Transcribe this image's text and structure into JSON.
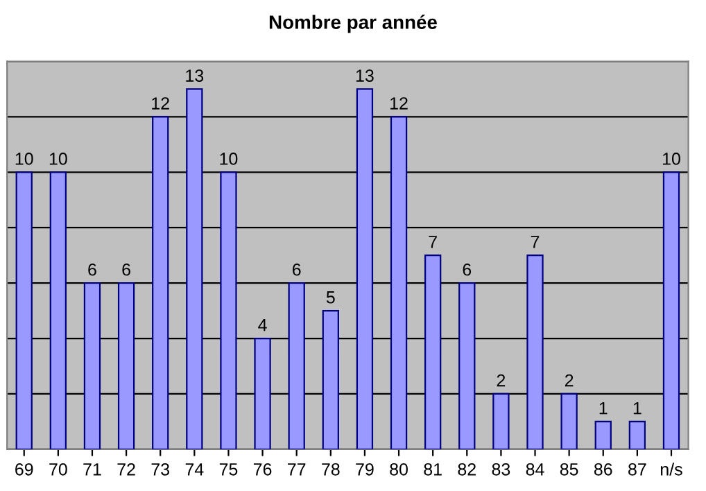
{
  "chart_data": {
    "type": "bar",
    "title": "Nombre par année",
    "categories": [
      "69",
      "70",
      "71",
      "72",
      "73",
      "74",
      "75",
      "76",
      "77",
      "78",
      "79",
      "80",
      "81",
      "82",
      "83",
      "84",
      "85",
      "86",
      "87",
      "n/s"
    ],
    "values": [
      10,
      10,
      6,
      6,
      12,
      13,
      10,
      4,
      6,
      5,
      13,
      12,
      7,
      6,
      2,
      7,
      2,
      1,
      1,
      10
    ],
    "color": "#9999ff",
    "ylim": [
      0,
      14
    ],
    "yticks": [
      {
        "value": 0,
        "label": null
      },
      {
        "value": 2,
        "label": null
      },
      {
        "value": 4,
        "label": null
      },
      {
        "value": 6,
        "label": null
      },
      {
        "value": 8,
        "label": null
      },
      {
        "value": 10,
        "label": null
      },
      {
        "value": 12,
        "label": null
      },
      {
        "value": 14,
        "label": null
      }
    ],
    "tick_labels": "x",
    "grid": "y",
    "data_labels": true
  }
}
